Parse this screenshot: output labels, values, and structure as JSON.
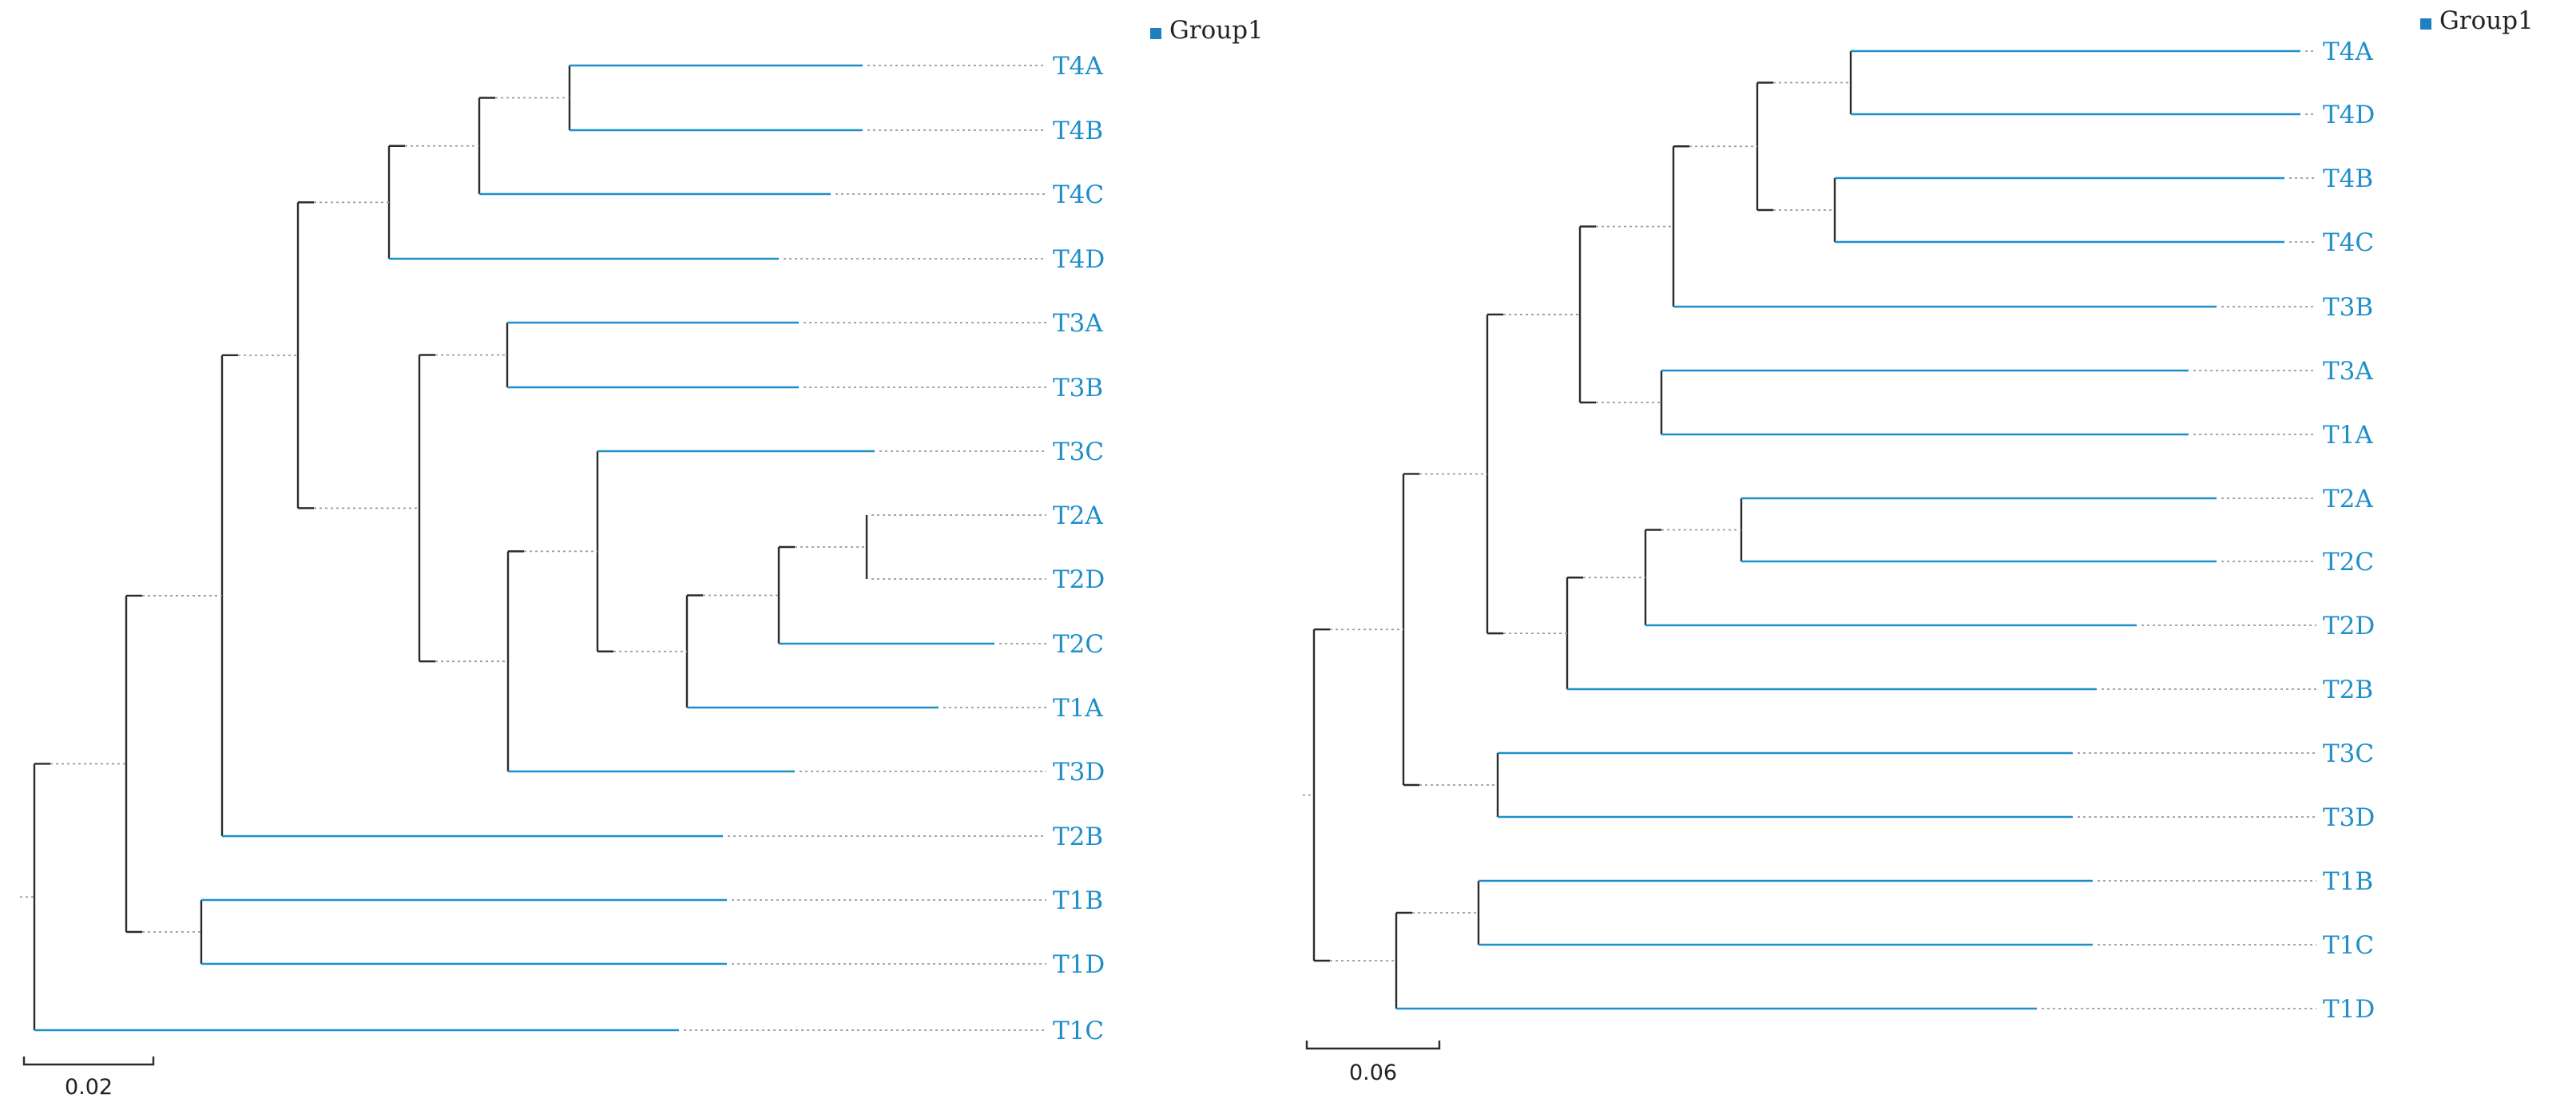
{
  "figure": {
    "colors": {
      "clade": "#1f8fc9",
      "backbone": "#2b2b2b",
      "dotted": "#9a9a9a",
      "legend_swatch": "#1f7fbf",
      "label": "#1f8fc9"
    }
  },
  "trees": [
    {
      "legend": "Group1",
      "scale_bar": {
        "label": "0.02"
      },
      "tips": [
        "T4A",
        "T4B",
        "T4C",
        "T4D",
        "T3A",
        "T3B",
        "T3C",
        "T2A",
        "T2D",
        "T2C",
        "T1A",
        "T3D",
        "T2B",
        "T1B",
        "T1D",
        "T1C"
      ]
    },
    {
      "legend": "Group1",
      "scale_bar": {
        "label": "0.06"
      },
      "tips": [
        "T4A",
        "T4D",
        "T4B",
        "T4C",
        "T3B",
        "T3A",
        "T1A",
        "T2A",
        "T2C",
        "T2D",
        "T2B",
        "T3C",
        "T3D",
        "T1B",
        "T1C",
        "T1D"
      ]
    }
  ]
}
